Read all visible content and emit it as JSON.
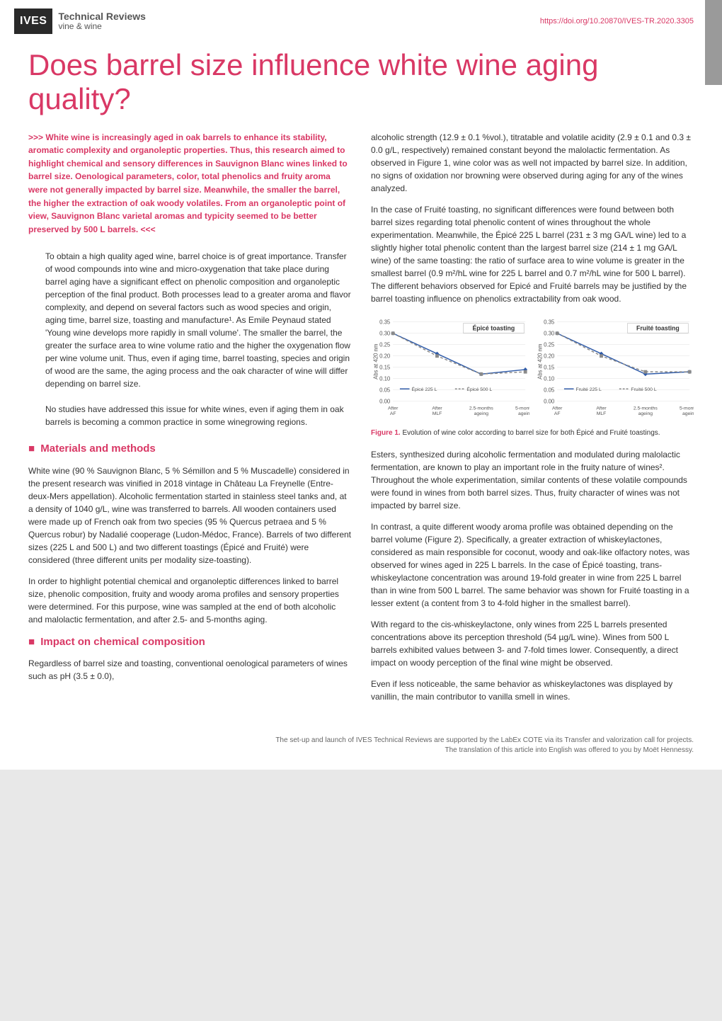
{
  "header": {
    "logo_square": "IVES",
    "logo_line1": "Technical Reviews",
    "logo_line2": "vine & wine",
    "doi": "https://doi.org/10.20870/IVES-TR.2020.3305"
  },
  "title": "Does barrel size influence white wine aging quality?",
  "abstract": {
    "open_marker": ">>>",
    "text": "White wine is increasingly aged in oak barrels to enhance its stability, aromatic complexity and organoleptic properties. Thus, this research aimed to highlight chemical and sensory differences in Sauvignon Blanc wines linked to barrel size. Oenological parameters, color, total phenolics and fruity aroma were not generally impacted by barrel size. Meanwhile, the smaller the barrel, the higher the extraction of oak woody volatiles. From an organoleptic point of view, Sauvignon Blanc varietal aromas and typicity seemed to be better preserved by 500 L barrels.",
    "close_marker": "<<<"
  },
  "intro_p1": "To obtain a high quality aged wine, barrel choice is of great importance. Transfer of wood compounds into wine and micro-oxygenation that take place during barrel aging have a significant effect on phenolic composition and organoleptic perception of the final product. Both processes lead to a greater aroma and flavor complexity, and depend on several factors such as wood species and origin, aging time, barrel size, toasting and manufacture¹. As Emile Peynaud stated 'Young wine develops more rapidly in small volume'. The smaller the barrel, the greater the surface area to wine volume ratio and the higher the oxygenation flow per wine volume unit. Thus, even if aging time, barrel toasting, species and origin of wood are the same, the aging process and the oak character of wine will differ depending on barrel size.",
  "intro_p2": "No studies have addressed this issue for white wines, even if aging them in oak barrels is becoming a common practice in some winegrowing regions.",
  "section1": {
    "head": "Materials and methods",
    "p1": "White wine (90 % Sauvignon Blanc, 5 % Sémillon and 5 % Muscadelle) considered in the present research was vinified in 2018 vintage in Château La Freynelle (Entre-deux-Mers appellation). Alcoholic fermentation started in stainless steel tanks and, at a density of 1040 g/L, wine was transferred to barrels. All wooden containers used were made up of French oak from two species (95 % Quercus petraea and 5 % Quercus robur) by Nadalié cooperage (Ludon-Médoc, France). Barrels of two different sizes (225 L and 500 L) and two different toastings (Épicé and Fruité) were considered (three different units per modality size-toasting).",
    "p2": "In order to highlight potential chemical and organoleptic differences linked to barrel size, phenolic composition, fruity and woody aroma profiles and sensory properties were determined. For this purpose, wine was sampled at the end of both alcoholic and malolactic fermentation, and after 2.5- and 5-months aging."
  },
  "section2": {
    "head": "Impact on chemical composition",
    "p1": "Regardless of barrel size and toasting, conventional oenological parameters of wines such as pH (3.5 ± 0.0),",
    "p2": "alcoholic strength (12.9 ± 0.1 %vol.), titratable and volatile acidity (2.9 ± 0.1 and 0.3 ± 0.0 g/L, respectively) remained constant beyond the malolactic fermentation. As observed in Figure 1, wine color was as well not impacted by barrel size. In addition, no signs of oxidation nor browning were observed during aging for any of the wines analyzed.",
    "p3": "In the case of Fruité toasting, no significant differences were found between both barrel sizes regarding total phenolic content of wines throughout the whole experimentation. Meanwhile, the Épicé 225 L barrel (231 ± 3 mg GA/L wine) led to a slightly higher total phenolic content than the largest barrel size (214 ± 1 mg GA/L wine) of the same toasting: the ratio of surface area to wine volume is greater in the smallest barrel (0.9 m²/hL wine for 225 L barrel and 0.7 m²/hL wine for 500 L barrel). The different behaviors observed for Epicé and Fruité barrels may be justified by the barrel toasting influence on phenolics extractability from oak wood."
  },
  "figure1": {
    "label": "Figure 1.",
    "caption": "Evolution of wine color according to barrel size for both Épicé and Fruité toastings.",
    "left_chart": {
      "title": "Épicé toasting",
      "ylabel": "Abs at 420 nm",
      "ylim": [
        0.0,
        0.35
      ],
      "ytick_step": 0.05,
      "categories": [
        "After AF",
        "After MLF",
        "2.5-months ageing",
        "5-months ageing"
      ],
      "series": [
        {
          "name": "Épicé 225 L",
          "color": "#2e5aa8",
          "dash": "solid",
          "marker": "diamond",
          "values": [
            0.3,
            0.21,
            0.12,
            0.14
          ]
        },
        {
          "name": "Épicé 500 L",
          "color": "#8a8a8a",
          "dash": "dashed",
          "marker": "square",
          "values": [
            0.3,
            0.2,
            0.12,
            0.13
          ]
        }
      ],
      "background_color": "#ffffff",
      "grid_color": "#e0e0e0",
      "axis_color": "#555555",
      "label_fontsize": 8
    },
    "right_chart": {
      "title": "Fruité toasting",
      "ylabel": "Abs at 420 nm",
      "ylim": [
        0.0,
        0.35
      ],
      "ytick_step": 0.05,
      "categories": [
        "After AF",
        "After MLF",
        "2.5-months ageing",
        "5-months ageing"
      ],
      "series": [
        {
          "name": "Fruité 225 L",
          "color": "#2e5aa8",
          "dash": "solid",
          "marker": "diamond",
          "values": [
            0.3,
            0.21,
            0.12,
            0.13
          ]
        },
        {
          "name": "Fruité 500 L",
          "color": "#8a8a8a",
          "dash": "dashed",
          "marker": "square",
          "values": [
            0.3,
            0.2,
            0.13,
            0.13
          ]
        }
      ],
      "background_color": "#ffffff",
      "grid_color": "#e0e0e0",
      "axis_color": "#555555",
      "label_fontsize": 8
    }
  },
  "section3": {
    "p1": "Esters, synthesized during alcoholic fermentation and modulated during malolactic fermentation, are known to play an important role in the fruity nature of wines². Throughout the whole experimentation, similar contents of these volatile compounds were found in wines from both barrel sizes. Thus, fruity character of wines was not impacted by barrel size.",
    "p2": "In contrast, a quite different woody aroma profile was obtained depending on the barrel volume (Figure 2). Specifically, a greater extraction of whiskeylactones, considered as main responsible for coconut, woody and oak-like olfactory notes, was observed for wines aged in 225 L barrels. In the case of Épicé toasting, trans-whiskeylactone concentration was around 19-fold greater in wine from 225 L barrel than in wine from 500 L barrel. The same behavior was shown for Fruité toasting in a lesser extent (a content from 3 to 4-fold higher in the smallest barrel).",
    "p3": "With regard to the cis-whiskeylactone, only wines from 225 L barrels presented concentrations above its perception threshold (54 µg/L wine). Wines from 500 L barrels exhibited values between 3- and 7-fold times lower. Consequently, a direct impact on woody perception of the final wine might be observed.",
    "p4": "Even if less noticeable, the same behavior as whiskeylactones was displayed by vanillin, the main contributor to vanilla smell in wines."
  },
  "footer": {
    "line1": "The set-up and launch of IVES Technical Reviews are supported by the LabEx COTE via its Transfer and valorization call for projects.",
    "line2": "The translation of this article into English was offered to you by Moët Hennessy."
  },
  "colors": {
    "accent": "#d93865",
    "text": "#333333",
    "chart_blue": "#2e5aa8",
    "chart_gray": "#8a8a8a"
  }
}
